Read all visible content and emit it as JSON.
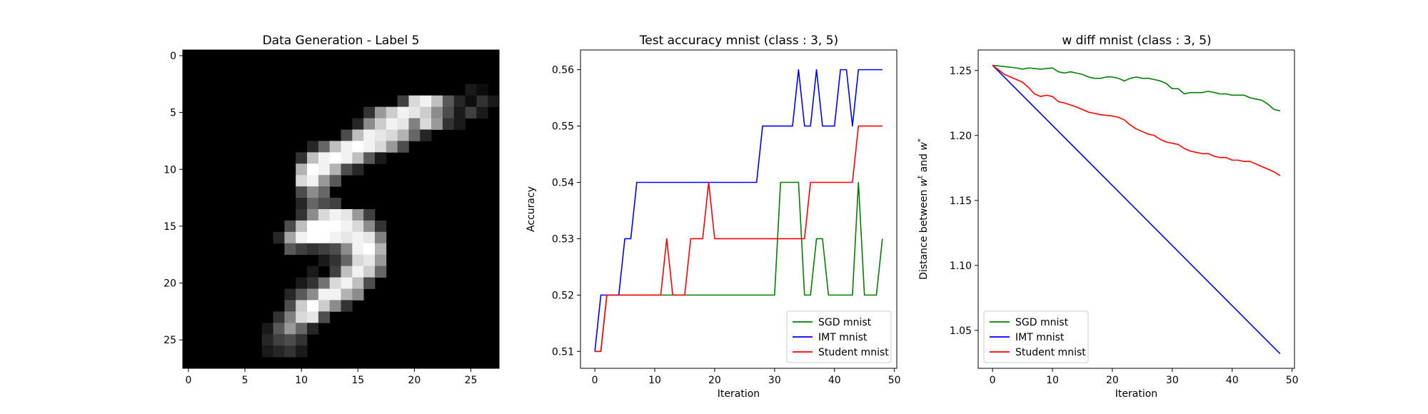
{
  "chart_data": [
    {
      "type": "heatmap",
      "title": "Data Generation - Label 5",
      "colormap": "gray",
      "xlim": [
        -0.5,
        27.5
      ],
      "ylim": [
        27.5,
        -0.5
      ],
      "xticks": [
        0,
        5,
        10,
        15,
        20,
        25
      ],
      "yticks": [
        0,
        5,
        10,
        15,
        20,
        25
      ],
      "pixels": [
        {
          "r": 3,
          "c": 25,
          "v": 0.1
        },
        {
          "r": 3,
          "c": 26,
          "v": 0.05
        },
        {
          "r": 4,
          "c": 19,
          "v": 0.25
        },
        {
          "r": 4,
          "c": 20,
          "v": 0.85
        },
        {
          "r": 4,
          "c": 21,
          "v": 0.95
        },
        {
          "r": 4,
          "c": 22,
          "v": 0.75
        },
        {
          "r": 4,
          "c": 23,
          "v": 0.35
        },
        {
          "r": 4,
          "c": 24,
          "v": 0.15
        },
        {
          "r": 4,
          "c": 25,
          "v": 0.05
        },
        {
          "r": 4,
          "c": 26,
          "v": 0.2
        },
        {
          "r": 4,
          "c": 27,
          "v": 0.1
        },
        {
          "r": 5,
          "c": 16,
          "v": 0.2
        },
        {
          "r": 5,
          "c": 17,
          "v": 0.6
        },
        {
          "r": 5,
          "c": 18,
          "v": 0.8
        },
        {
          "r": 5,
          "c": 19,
          "v": 0.95
        },
        {
          "r": 5,
          "c": 20,
          "v": 0.9
        },
        {
          "r": 5,
          "c": 21,
          "v": 0.8
        },
        {
          "r": 5,
          "c": 22,
          "v": 0.55
        },
        {
          "r": 5,
          "c": 23,
          "v": 0.3
        },
        {
          "r": 5,
          "c": 24,
          "v": 0.1
        },
        {
          "r": 5,
          "c": 25,
          "v": 0.25
        },
        {
          "r": 5,
          "c": 26,
          "v": 0.1
        },
        {
          "r": 6,
          "c": 15,
          "v": 0.15
        },
        {
          "r": 6,
          "c": 16,
          "v": 0.55
        },
        {
          "r": 6,
          "c": 17,
          "v": 0.8
        },
        {
          "r": 6,
          "c": 18,
          "v": 0.95
        },
        {
          "r": 6,
          "c": 19,
          "v": 0.9
        },
        {
          "r": 6,
          "c": 20,
          "v": 0.5
        },
        {
          "r": 6,
          "c": 21,
          "v": 0.85
        },
        {
          "r": 6,
          "c": 22,
          "v": 0.6
        },
        {
          "r": 6,
          "c": 23,
          "v": 0.2
        },
        {
          "r": 6,
          "c": 24,
          "v": 0.1
        },
        {
          "r": 7,
          "c": 14,
          "v": 0.3
        },
        {
          "r": 7,
          "c": 15,
          "v": 0.75
        },
        {
          "r": 7,
          "c": 16,
          "v": 0.95
        },
        {
          "r": 7,
          "c": 17,
          "v": 0.9
        },
        {
          "r": 7,
          "c": 18,
          "v": 0.85
        },
        {
          "r": 7,
          "c": 19,
          "v": 0.7
        },
        {
          "r": 7,
          "c": 20,
          "v": 0.4
        },
        {
          "r": 7,
          "c": 21,
          "v": 0.15
        },
        {
          "r": 8,
          "c": 11,
          "v": 0.15
        },
        {
          "r": 8,
          "c": 12,
          "v": 0.4
        },
        {
          "r": 8,
          "c": 13,
          "v": 0.75
        },
        {
          "r": 8,
          "c": 14,
          "v": 0.95
        },
        {
          "r": 8,
          "c": 15,
          "v": 1.0
        },
        {
          "r": 8,
          "c": 16,
          "v": 0.95
        },
        {
          "r": 8,
          "c": 17,
          "v": 0.85
        },
        {
          "r": 8,
          "c": 18,
          "v": 0.6
        },
        {
          "r": 8,
          "c": 19,
          "v": 0.3
        },
        {
          "r": 9,
          "c": 10,
          "v": 0.2
        },
        {
          "r": 9,
          "c": 11,
          "v": 0.75
        },
        {
          "r": 9,
          "c": 12,
          "v": 0.95
        },
        {
          "r": 9,
          "c": 13,
          "v": 1.0
        },
        {
          "r": 9,
          "c": 14,
          "v": 0.95
        },
        {
          "r": 9,
          "c": 15,
          "v": 0.75
        },
        {
          "r": 9,
          "c": 16,
          "v": 0.35
        },
        {
          "r": 9,
          "c": 17,
          "v": 0.1
        },
        {
          "r": 10,
          "c": 10,
          "v": 0.7
        },
        {
          "r": 10,
          "c": 11,
          "v": 1.0
        },
        {
          "r": 10,
          "c": 12,
          "v": 0.95
        },
        {
          "r": 10,
          "c": 13,
          "v": 0.7
        },
        {
          "r": 10,
          "c": 14,
          "v": 0.3
        },
        {
          "r": 10,
          "c": 15,
          "v": 0.15
        },
        {
          "r": 11,
          "c": 10,
          "v": 0.85
        },
        {
          "r": 11,
          "c": 11,
          "v": 0.95
        },
        {
          "r": 11,
          "c": 12,
          "v": 0.6
        },
        {
          "r": 11,
          "c": 13,
          "v": 0.35
        },
        {
          "r": 12,
          "c": 10,
          "v": 0.3
        },
        {
          "r": 12,
          "c": 11,
          "v": 0.55
        },
        {
          "r": 12,
          "c": 12,
          "v": 0.4
        },
        {
          "r": 13,
          "c": 10,
          "v": 0.15
        },
        {
          "r": 13,
          "c": 11,
          "v": 0.4
        },
        {
          "r": 13,
          "c": 12,
          "v": 0.3
        },
        {
          "r": 13,
          "c": 13,
          "v": 0.25
        },
        {
          "r": 14,
          "c": 10,
          "v": 0.2
        },
        {
          "r": 14,
          "c": 11,
          "v": 0.55
        },
        {
          "r": 14,
          "c": 12,
          "v": 0.85
        },
        {
          "r": 14,
          "c": 13,
          "v": 0.95
        },
        {
          "r": 14,
          "c": 14,
          "v": 0.9
        },
        {
          "r": 14,
          "c": 15,
          "v": 0.6
        },
        {
          "r": 14,
          "c": 16,
          "v": 0.25
        },
        {
          "r": 15,
          "c": 9,
          "v": 0.3
        },
        {
          "r": 15,
          "c": 10,
          "v": 0.75
        },
        {
          "r": 15,
          "c": 11,
          "v": 1.0
        },
        {
          "r": 15,
          "c": 12,
          "v": 1.0
        },
        {
          "r": 15,
          "c": 13,
          "v": 1.0
        },
        {
          "r": 15,
          "c": 14,
          "v": 0.95
        },
        {
          "r": 15,
          "c": 15,
          "v": 0.85
        },
        {
          "r": 15,
          "c": 16,
          "v": 0.55
        },
        {
          "r": 15,
          "c": 17,
          "v": 0.2
        },
        {
          "r": 16,
          "c": 8,
          "v": 0.15
        },
        {
          "r": 16,
          "c": 9,
          "v": 0.65
        },
        {
          "r": 16,
          "c": 10,
          "v": 0.95
        },
        {
          "r": 16,
          "c": 11,
          "v": 1.0
        },
        {
          "r": 16,
          "c": 12,
          "v": 1.0
        },
        {
          "r": 16,
          "c": 13,
          "v": 0.95
        },
        {
          "r": 16,
          "c": 14,
          "v": 0.9
        },
        {
          "r": 16,
          "c": 15,
          "v": 0.95
        },
        {
          "r": 16,
          "c": 16,
          "v": 0.9
        },
        {
          "r": 16,
          "c": 17,
          "v": 0.5
        },
        {
          "r": 17,
          "c": 9,
          "v": 0.35
        },
        {
          "r": 17,
          "c": 10,
          "v": 0.25
        },
        {
          "r": 17,
          "c": 11,
          "v": 0.2
        },
        {
          "r": 17,
          "c": 12,
          "v": 0.25
        },
        {
          "r": 17,
          "c": 13,
          "v": 0.3
        },
        {
          "r": 17,
          "c": 14,
          "v": 0.55
        },
        {
          "r": 17,
          "c": 15,
          "v": 0.95
        },
        {
          "r": 17,
          "c": 16,
          "v": 1.0
        },
        {
          "r": 17,
          "c": 17,
          "v": 0.7
        },
        {
          "r": 18,
          "c": 12,
          "v": 0.1
        },
        {
          "r": 18,
          "c": 13,
          "v": 0.2
        },
        {
          "r": 18,
          "c": 14,
          "v": 0.4
        },
        {
          "r": 18,
          "c": 15,
          "v": 0.85
        },
        {
          "r": 18,
          "c": 16,
          "v": 0.9
        },
        {
          "r": 18,
          "c": 17,
          "v": 0.6
        },
        {
          "r": 19,
          "c": 11,
          "v": 0.1
        },
        {
          "r": 19,
          "c": 13,
          "v": 0.25
        },
        {
          "r": 19,
          "c": 14,
          "v": 0.75
        },
        {
          "r": 19,
          "c": 15,
          "v": 0.95
        },
        {
          "r": 19,
          "c": 16,
          "v": 0.8
        },
        {
          "r": 19,
          "c": 17,
          "v": 0.4
        },
        {
          "r": 20,
          "c": 10,
          "v": 0.1
        },
        {
          "r": 20,
          "c": 11,
          "v": 0.2
        },
        {
          "r": 20,
          "c": 12,
          "v": 0.45
        },
        {
          "r": 20,
          "c": 13,
          "v": 0.85
        },
        {
          "r": 20,
          "c": 14,
          "v": 0.95
        },
        {
          "r": 20,
          "c": 15,
          "v": 0.75
        },
        {
          "r": 20,
          "c": 16,
          "v": 0.3
        },
        {
          "r": 21,
          "c": 9,
          "v": 0.15
        },
        {
          "r": 21,
          "c": 10,
          "v": 0.35
        },
        {
          "r": 21,
          "c": 11,
          "v": 0.55
        },
        {
          "r": 21,
          "c": 12,
          "v": 0.95
        },
        {
          "r": 21,
          "c": 13,
          "v": 0.95
        },
        {
          "r": 21,
          "c": 14,
          "v": 0.7
        },
        {
          "r": 21,
          "c": 15,
          "v": 0.55
        },
        {
          "r": 22,
          "c": 9,
          "v": 0.3
        },
        {
          "r": 22,
          "c": 10,
          "v": 0.8
        },
        {
          "r": 22,
          "c": 11,
          "v": 1.0
        },
        {
          "r": 22,
          "c": 12,
          "v": 0.8
        },
        {
          "r": 22,
          "c": 13,
          "v": 0.55
        },
        {
          "r": 22,
          "c": 14,
          "v": 0.2
        },
        {
          "r": 23,
          "c": 8,
          "v": 0.2
        },
        {
          "r": 23,
          "c": 9,
          "v": 0.5
        },
        {
          "r": 23,
          "c": 10,
          "v": 0.85
        },
        {
          "r": 23,
          "c": 11,
          "v": 0.9
        },
        {
          "r": 23,
          "c": 12,
          "v": 0.3
        },
        {
          "r": 24,
          "c": 7,
          "v": 0.1
        },
        {
          "r": 24,
          "c": 8,
          "v": 0.35
        },
        {
          "r": 24,
          "c": 9,
          "v": 0.6
        },
        {
          "r": 24,
          "c": 10,
          "v": 0.4
        },
        {
          "r": 24,
          "c": 11,
          "v": 0.15
        },
        {
          "r": 25,
          "c": 7,
          "v": 0.15
        },
        {
          "r": 25,
          "c": 8,
          "v": 0.25
        },
        {
          "r": 25,
          "c": 9,
          "v": 0.3
        },
        {
          "r": 25,
          "c": 10,
          "v": 0.2
        },
        {
          "r": 26,
          "c": 7,
          "v": 0.1
        },
        {
          "r": 26,
          "c": 8,
          "v": 0.15
        },
        {
          "r": 26,
          "c": 9,
          "v": 0.2
        },
        {
          "r": 26,
          "c": 10,
          "v": 0.1
        }
      ]
    },
    {
      "type": "line",
      "title": "Test accuracy mnist (class : 3, 5)",
      "xlabel": "Iteration",
      "ylabel": "Accuracy",
      "xlim": [
        -2.4,
        50.4
      ],
      "ylim": [
        0.507,
        0.5635
      ],
      "xticks": [
        0,
        10,
        20,
        30,
        40,
        50
      ],
      "yticks": [
        0.51,
        0.52,
        0.53,
        0.54,
        0.55,
        0.56
      ],
      "ytick_labels": [
        "0.51",
        "0.52",
        "0.53",
        "0.54",
        "0.55",
        "0.56"
      ],
      "legend": "lower right",
      "series": [
        {
          "name": "SGD mnist",
          "color": "#008000",
          "x": [
            0,
            1,
            2,
            30,
            31,
            34,
            35,
            36,
            37,
            38,
            39,
            43,
            44,
            45,
            47,
            48
          ],
          "y": [
            0.51,
            0.51,
            0.52,
            0.52,
            0.54,
            0.54,
            0.52,
            0.52,
            0.53,
            0.53,
            0.52,
            0.52,
            0.54,
            0.52,
            0.52,
            0.53
          ]
        },
        {
          "name": "IMT mnist",
          "color": "#0000ff",
          "x": [
            0,
            1,
            4,
            5,
            6,
            7,
            27,
            28,
            33,
            34,
            35,
            36,
            37,
            38,
            39,
            40,
            41,
            42,
            43,
            44,
            48
          ],
          "y": [
            0.51,
            0.52,
            0.52,
            0.53,
            0.53,
            0.54,
            0.54,
            0.55,
            0.55,
            0.56,
            0.55,
            0.55,
            0.56,
            0.55,
            0.55,
            0.55,
            0.56,
            0.56,
            0.55,
            0.56,
            0.56
          ]
        },
        {
          "name": "Student mnist",
          "color": "#ff0000",
          "x": [
            0,
            1,
            2,
            11,
            12,
            13,
            14,
            15,
            16,
            18,
            19,
            20,
            35,
            36,
            37,
            43,
            44,
            48
          ],
          "y": [
            0.51,
            0.51,
            0.52,
            0.52,
            0.53,
            0.52,
            0.52,
            0.52,
            0.53,
            0.53,
            0.54,
            0.53,
            0.53,
            0.54,
            0.54,
            0.54,
            0.55,
            0.55
          ]
        }
      ]
    },
    {
      "type": "line",
      "title": "w diff mnist (class : 3, 5)",
      "xlabel": "Iteration",
      "ylabel": "Distance between w^t and w^*",
      "xlim": [
        -2.4,
        50.4
      ],
      "ylim": [
        1.0208,
        1.2658
      ],
      "xticks": [
        0,
        10,
        20,
        30,
        40,
        50
      ],
      "yticks": [
        1.05,
        1.1,
        1.15,
        1.2,
        1.25
      ],
      "ytick_labels": [
        "1.05",
        "1.10",
        "1.15",
        "1.20",
        "1.25"
      ],
      "legend": "lower left",
      "series": [
        {
          "name": "SGD mnist",
          "color": "#008000",
          "x": [
            0,
            2,
            4,
            5,
            6,
            8,
            10,
            11,
            12,
            13,
            14,
            15,
            16,
            17,
            18,
            19,
            20,
            21,
            22,
            23,
            24,
            25,
            26,
            27,
            28,
            29,
            30,
            31,
            32,
            33,
            34,
            35,
            36,
            37,
            38,
            39,
            40,
            41,
            42,
            43,
            44,
            45,
            46,
            47,
            48
          ],
          "y": [
            1.254,
            1.253,
            1.252,
            1.251,
            1.252,
            1.251,
            1.252,
            1.249,
            1.248,
            1.249,
            1.248,
            1.247,
            1.245,
            1.244,
            1.244,
            1.245,
            1.245,
            1.244,
            1.242,
            1.244,
            1.245,
            1.244,
            1.244,
            1.243,
            1.242,
            1.24,
            1.236,
            1.236,
            1.232,
            1.233,
            1.233,
            1.233,
            1.234,
            1.233,
            1.232,
            1.232,
            1.231,
            1.231,
            1.231,
            1.229,
            1.228,
            1.227,
            1.224,
            1.22,
            1.219
          ]
        },
        {
          "name": "IMT mnist",
          "color": "#0000ff",
          "x": [
            0,
            48
          ],
          "y": [
            1.254,
            1.032
          ]
        },
        {
          "name": "Student mnist",
          "color": "#ff0000",
          "x": [
            0,
            2,
            4,
            5,
            6,
            7,
            8,
            9,
            10,
            11,
            12,
            14,
            16,
            18,
            20,
            21,
            22,
            23,
            24,
            25,
            26,
            27,
            28,
            29,
            30,
            31,
            32,
            33,
            34,
            35,
            36,
            37,
            38,
            39,
            40,
            41,
            42,
            43,
            44,
            45,
            46,
            47,
            48
          ],
          "y": [
            1.254,
            1.247,
            1.243,
            1.241,
            1.237,
            1.232,
            1.23,
            1.231,
            1.23,
            1.226,
            1.225,
            1.222,
            1.218,
            1.216,
            1.215,
            1.214,
            1.212,
            1.208,
            1.205,
            1.203,
            1.201,
            1.2,
            1.197,
            1.195,
            1.194,
            1.193,
            1.19,
            1.188,
            1.187,
            1.186,
            1.186,
            1.184,
            1.183,
            1.183,
            1.181,
            1.181,
            1.18,
            1.18,
            1.178,
            1.176,
            1.174,
            1.172,
            1.169
          ]
        }
      ]
    }
  ]
}
